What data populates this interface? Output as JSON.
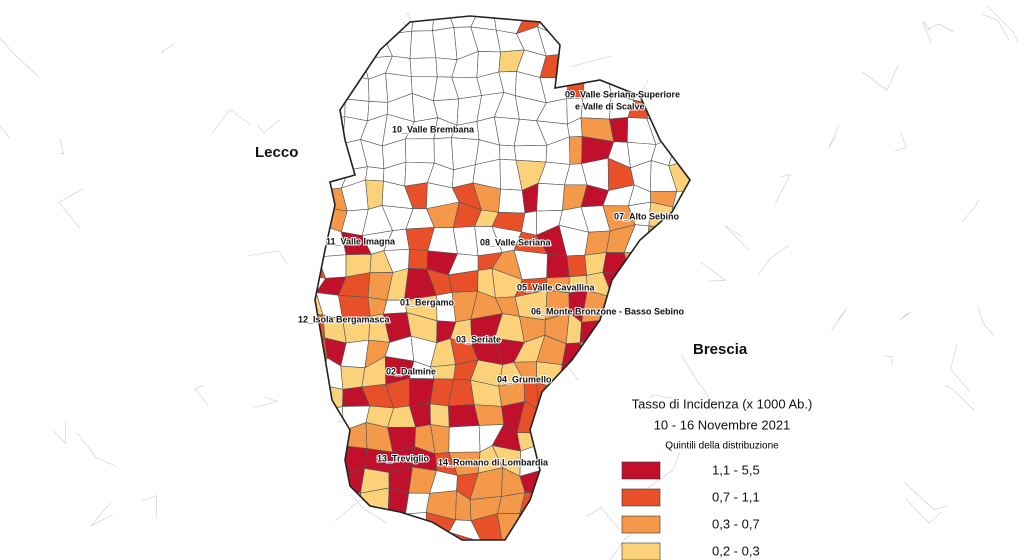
{
  "neighbors": [
    "Lecco",
    "Brescia"
  ],
  "districts": [
    {
      "lines": [
        "09_Valle Seriana Superiore",
        "e Valle di Scalve"
      ]
    },
    {
      "lines": [
        "10_Valle Brembana"
      ]
    },
    {
      "lines": [
        "07_Alto Sebino"
      ]
    },
    {
      "lines": [
        "11_Valle Imagna"
      ]
    },
    {
      "lines": [
        "08_Valle Seriana"
      ]
    },
    {
      "lines": [
        "05_Valle Cavallina"
      ]
    },
    {
      "lines": [
        "01_Bergamo"
      ]
    },
    {
      "lines": [
        "12_Isola Bergamasca"
      ]
    },
    {
      "lines": [
        "06_Monte Bronzone - Basso Sebino"
      ]
    },
    {
      "lines": [
        "03_Seriate"
      ]
    },
    {
      "lines": [
        "02_Dalmine"
      ]
    },
    {
      "lines": [
        "04_Grumello"
      ]
    },
    {
      "lines": [
        "13_Treviglio"
      ]
    },
    {
      "lines": [
        "14_Romano di Lombardia"
      ]
    }
  ],
  "legend": {
    "title": "Tasso di Incidenza (x 1000 Ab.)",
    "period": "10 - 16 Novembre 2021",
    "subtitle": "Quintili della distribuzione",
    "classes": [
      {
        "label": "1,1 - 5,5",
        "color": "#c0102c"
      },
      {
        "label": "0,7 - 1,1",
        "color": "#e8502a"
      },
      {
        "label": "0,3 - 0,7",
        "color": "#f4984a"
      },
      {
        "label": "0,2 - 0,3",
        "color": "#fbd27a"
      }
    ]
  }
}
